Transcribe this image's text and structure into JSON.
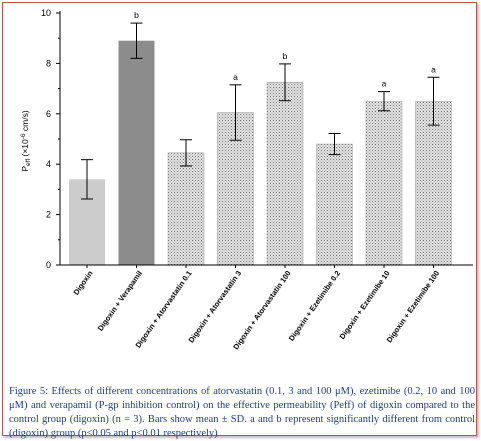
{
  "chart_data": {
    "type": "bar",
    "categories": [
      "Digoxin",
      "Digoxin + Verapamil",
      "Digoxin + Atorvastatin 0.1",
      "Digoxin + Atorvastatin 3",
      "Digoxin + Atorvastatin 100",
      "Digoxin + Ezetimibe 0.2",
      "Digoxin + Ezetimibe 10",
      "Digoxin + Ezetimibe 100"
    ],
    "values": [
      3.4,
      8.9,
      4.45,
      6.05,
      7.25,
      4.8,
      6.5,
      6.5
    ],
    "errors": [
      0.78,
      0.7,
      0.52,
      1.1,
      0.73,
      0.42,
      0.38,
      0.95
    ],
    "significance": [
      "",
      "b",
      "",
      "a",
      "b",
      "",
      "a",
      "a"
    ],
    "bar_fills": [
      "light-gray",
      "dark-gray",
      "dotted",
      "dotted",
      "dotted",
      "dotted",
      "dotted",
      "dotted"
    ],
    "ylabel_main": "P",
    "ylabel_sub": "eff",
    "ylabel_rest": " (×10",
    "ylabel_exp": "-6",
    "ylabel_unit": " cm/s)",
    "ylim": [
      0,
      10
    ],
    "yticks": [
      0,
      2,
      4,
      6,
      8,
      10
    ],
    "colors": {
      "light_bar": "#cccccc",
      "dark_bar": "#8c8c8c",
      "dot_bg": "#e6e6e6",
      "dot_fg": "#6e6e6e",
      "caption": "#1f3a93",
      "frame": "#c0504d"
    }
  },
  "caption": {
    "text": "Figure 5: Effects of different concentrations of atorvastatin (0.1, 3 and 100 μM), ezetimibe (0.2, 10 and 100 μM) and verapamil (P-gp inhibition control) on the effective permeability (Peff) of digoxin compared to the control group (digoxin) (n = 3). Bars show mean ± SD. a and b represent significantly different from control (digoxin) group (p<0.05 and p<0.01 respectively)"
  }
}
